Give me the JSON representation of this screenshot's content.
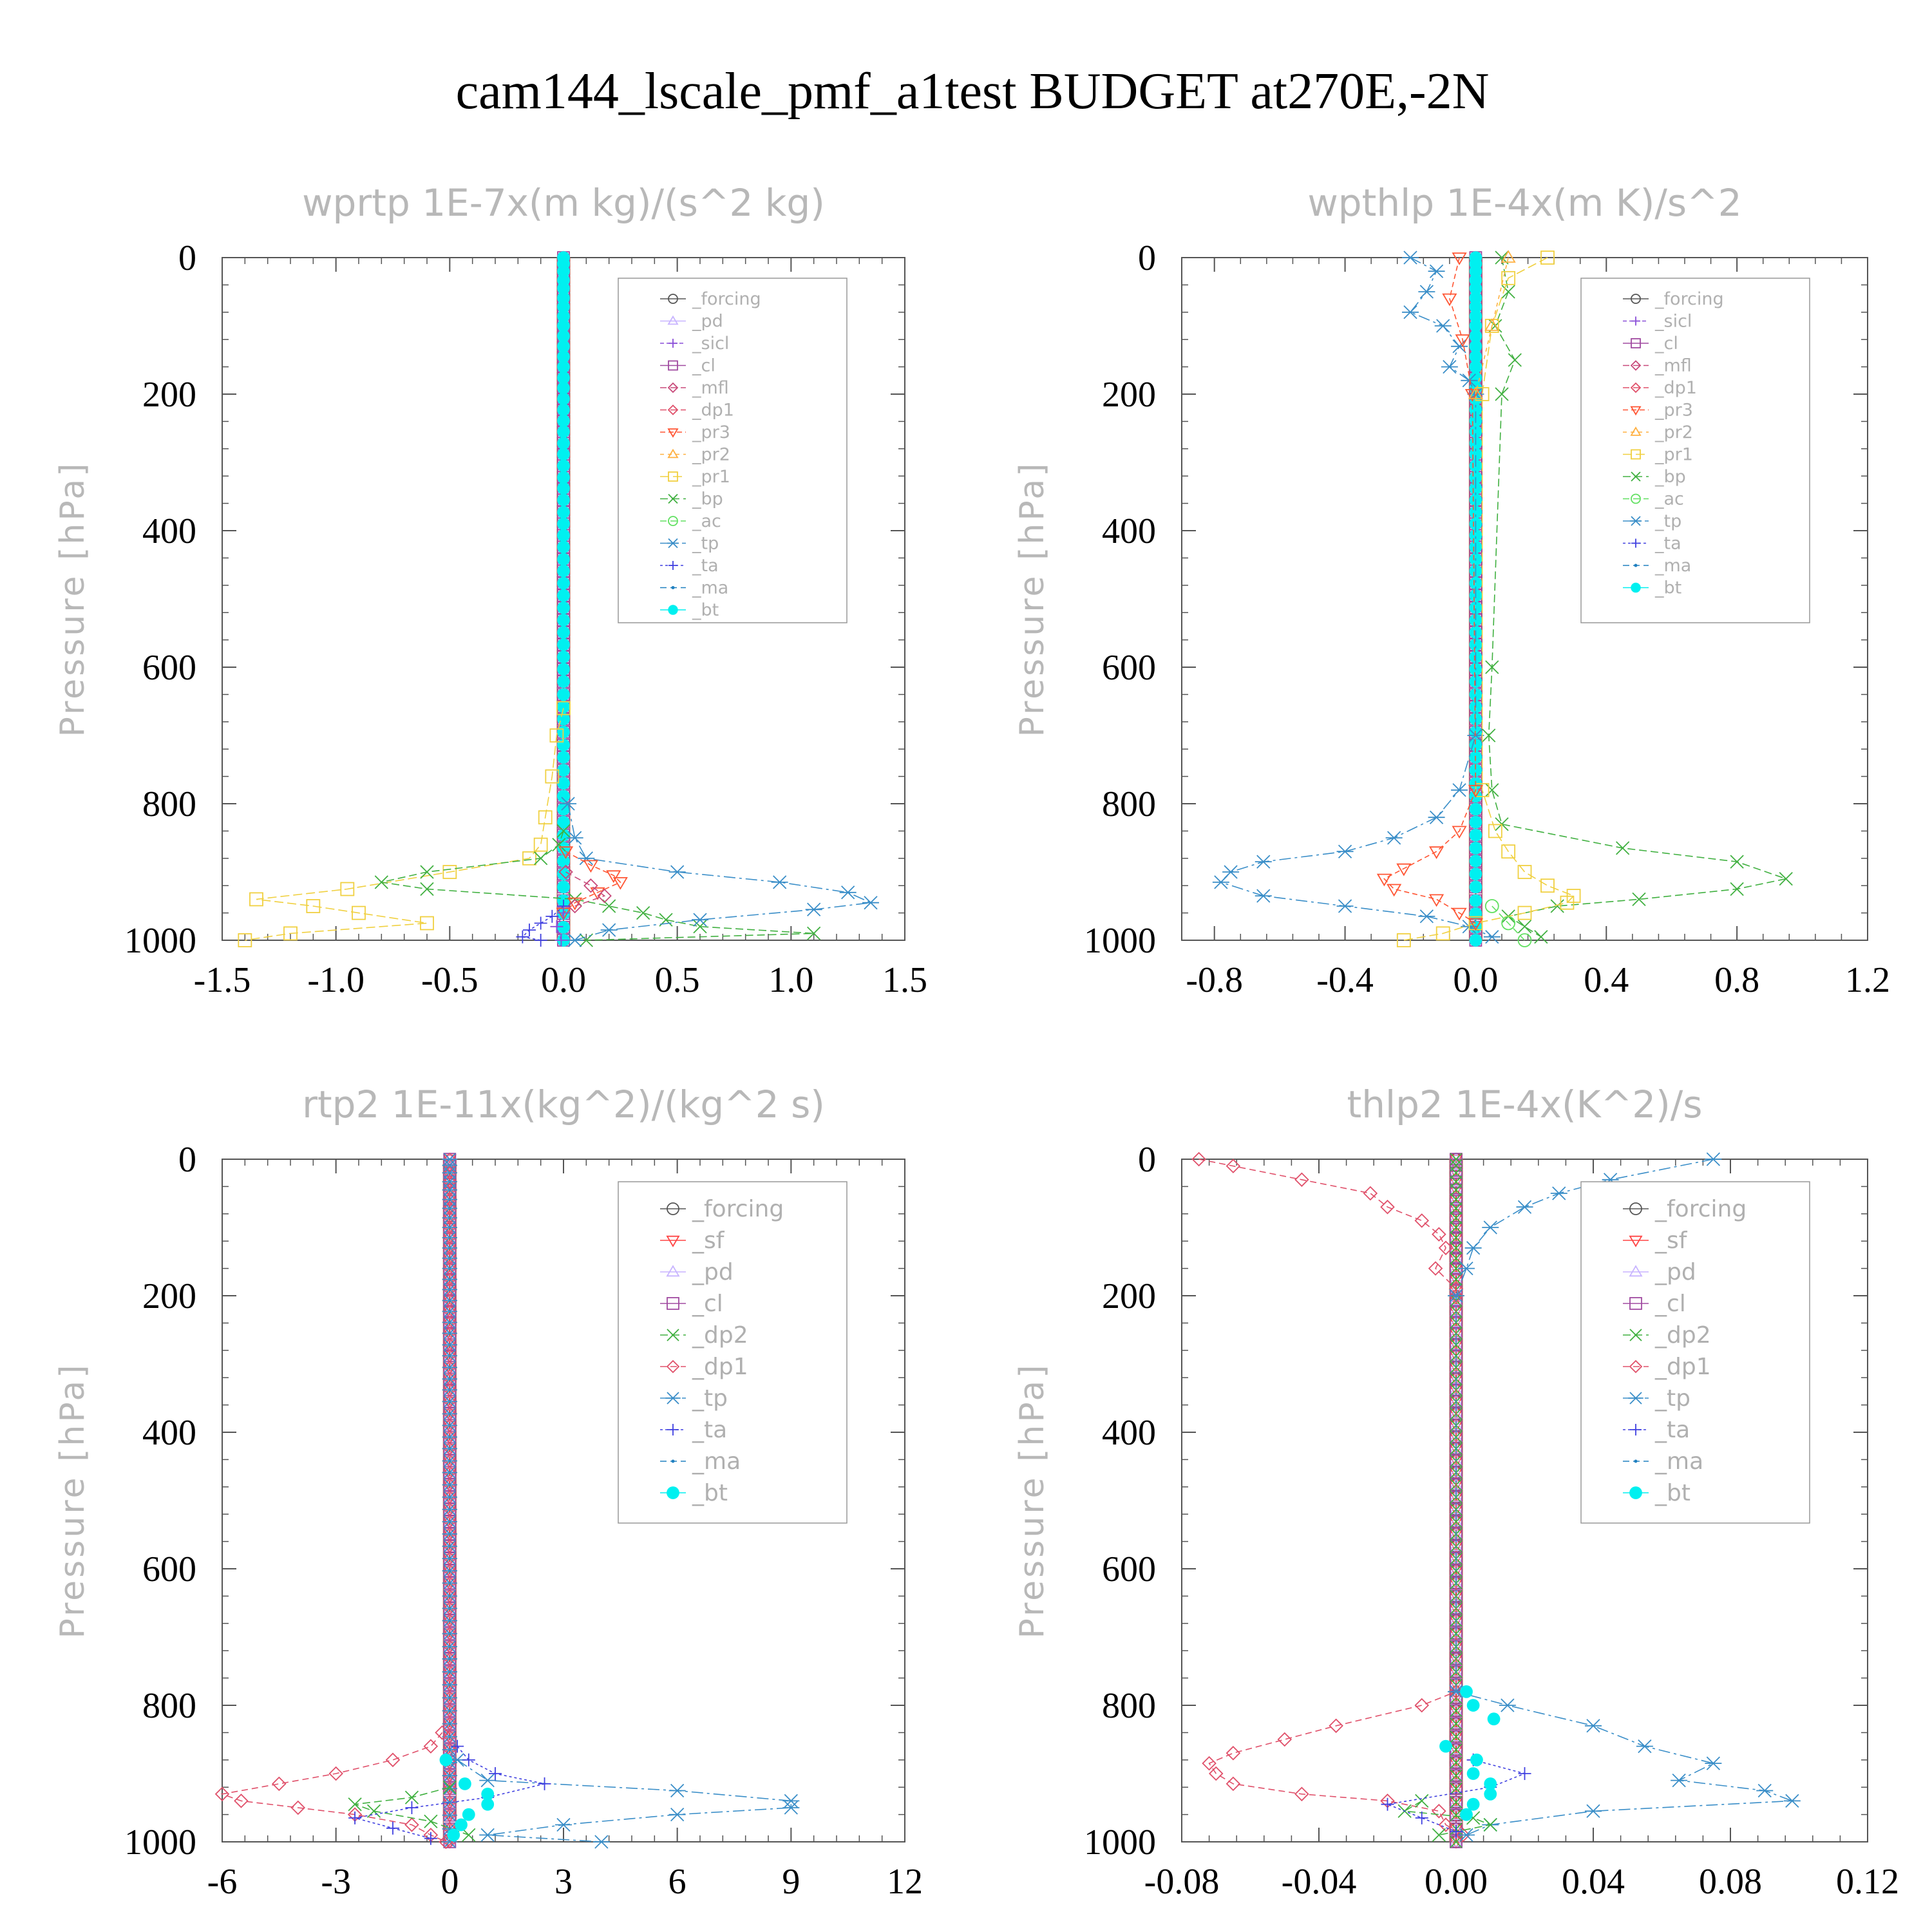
{
  "figure": {
    "title": "cam144_lscale_pmf_a1test  BUDGET at270E,-2N",
    "ylabel": "Pressure [hPa]"
  },
  "colors": {
    "_forcing": "#555555",
    "_pd": "#c8b4ff",
    "_sicl": "#8a4fd8",
    "_cl": "#a04aa0",
    "_mfl": "#c84a7a",
    "_dp1": "#e0506a",
    "_pr3": "#ff5533",
    "_pr2": "#ffb040",
    "_pr1": "#f0d040",
    "_bp": "#40b040",
    "_ac": "#60e060",
    "_tp": "#3a8ec8",
    "_ta": "#4040e0",
    "_ma": "#2080c0",
    "_bt": "#00f0f0",
    "_sf": "#ff4444",
    "_dp2": "#40b040"
  },
  "chart_data": [
    {
      "type": "line",
      "title": "wprtp  1E-7x(m kg)/(s^2 kg)",
      "ylabel": "Pressure [hPa]",
      "xlim": [
        -1.5,
        1.5
      ],
      "ylim": [
        1000,
        0
      ],
      "xticks": [
        "-1.5",
        "-1.0",
        "-0.5",
        "0.0",
        "0.5",
        "1.0",
        "1.5"
      ],
      "xtick_values": [
        -1.5,
        -1.0,
        -0.5,
        0.0,
        0.5,
        1.0,
        1.5
      ],
      "yticks": [
        "0",
        "200",
        "400",
        "600",
        "800",
        "1000"
      ],
      "ytick_values": [
        0,
        200,
        400,
        600,
        800,
        1000
      ],
      "legend": [
        "_forcing",
        "_pd",
        "_sicl",
        "_cl",
        "_mfl",
        "_dp1",
        "_pr3",
        "_pr2",
        "_pr1",
        "_bp",
        "_ac",
        "_tp",
        "_ta",
        "_ma",
        "_bt"
      ],
      "series": [
        {
          "name": "_pr1",
          "p": [
            660,
            700,
            760,
            820,
            860,
            880,
            900,
            925,
            940,
            950,
            960,
            975,
            990,
            1000
          ],
          "x": [
            0,
            -0.03,
            -0.05,
            -0.08,
            -0.1,
            -0.15,
            -0.5,
            -0.95,
            -1.35,
            -1.1,
            -0.9,
            -0.6,
            -1.2,
            -1.4
          ]
        },
        {
          "name": "_bp",
          "p": [
            840,
            860,
            880,
            900,
            915,
            925,
            940,
            950,
            960,
            970,
            980,
            990,
            1000
          ],
          "x": [
            0,
            -0.02,
            -0.1,
            -0.6,
            -0.8,
            -0.6,
            0.05,
            0.2,
            0.35,
            0.45,
            0.6,
            1.1,
            0.1
          ]
        },
        {
          "name": "_tp",
          "p": [
            800,
            850,
            880,
            900,
            915,
            930,
            945,
            955,
            970,
            985,
            1000
          ],
          "x": [
            0.02,
            0.05,
            0.1,
            0.5,
            0.95,
            1.25,
            1.35,
            1.1,
            0.6,
            0.2,
            0.05
          ]
        },
        {
          "name": "_pr3",
          "p": [
            870,
            890,
            905,
            915,
            930,
            945,
            960
          ],
          "x": [
            0.01,
            0.12,
            0.22,
            0.25,
            0.15,
            0.05,
            0
          ]
        },
        {
          "name": "_mfl",
          "p": [
            900,
            920,
            935,
            950
          ],
          "x": [
            0.01,
            0.12,
            0.18,
            0.05
          ]
        },
        {
          "name": "_ta",
          "p": [
            950,
            965,
            975,
            985,
            995,
            1000
          ],
          "x": [
            0,
            -0.05,
            -0.1,
            -0.15,
            -0.18,
            -0.1
          ]
        },
        {
          "name": "_sicl",
          "p": [
            960,
            980,
            1000
          ],
          "x": [
            0,
            -0.03,
            -0.01
          ]
        },
        {
          "name": "_forcing",
          "p": [
            0,
            1000
          ],
          "x": [
            0,
            0
          ]
        }
      ],
      "stack_series": [
        "_forcing",
        "_pd",
        "_cl",
        "_mfl",
        "_dp1",
        "_bt"
      ]
    },
    {
      "type": "line",
      "title": "wpthlp  1E-4x(m K)/s^2",
      "ylabel": "Pressure [hPa]",
      "xlim": [
        -0.9,
        1.2
      ],
      "ylim": [
        1000,
        0
      ],
      "xticks": [
        "-0.8",
        "-0.4",
        "0.0",
        "0.4",
        "0.8",
        "1.2"
      ],
      "xtick_values": [
        -0.8,
        -0.4,
        0.0,
        0.4,
        0.8,
        1.2
      ],
      "yticks": [
        "0",
        "200",
        "400",
        "600",
        "800",
        "1000"
      ],
      "ytick_values": [
        0,
        200,
        400,
        600,
        800,
        1000
      ],
      "legend": [
        "_forcing",
        "_sicl",
        "_cl",
        "_mfl",
        "_dp1",
        "_pr3",
        "_pr2",
        "_pr1",
        "_bp",
        "_ac",
        "_tp",
        "_ta",
        "_ma",
        "_bt"
      ],
      "series": [
        {
          "name": "_tp",
          "p": [
            0,
            20,
            50,
            80,
            100,
            130,
            160,
            180,
            200,
            700,
            780,
            820,
            850,
            870,
            885,
            900,
            915,
            935,
            950,
            965,
            980,
            995
          ],
          "x": [
            -0.2,
            -0.12,
            -0.15,
            -0.2,
            -0.1,
            -0.05,
            -0.08,
            -0.02,
            0,
            0.0,
            -0.05,
            -0.12,
            -0.25,
            -0.4,
            -0.65,
            -0.75,
            -0.78,
            -0.65,
            -0.4,
            -0.15,
            -0.02,
            0.05
          ]
        },
        {
          "name": "_bp",
          "p": [
            0,
            50,
            100,
            150,
            200,
            600,
            700,
            780,
            830,
            865,
            885,
            910,
            925,
            940,
            950,
            965,
            980,
            995
          ],
          "x": [
            0.08,
            0.1,
            0.06,
            0.12,
            0.08,
            0.05,
            0.04,
            0.05,
            0.08,
            0.45,
            0.8,
            0.95,
            0.8,
            0.5,
            0.25,
            0.1,
            0.15,
            0.2
          ]
        },
        {
          "name": "_pr1",
          "p": [
            0,
            30,
            100,
            200,
            780,
            840,
            870,
            900,
            920,
            935,
            945,
            960,
            975,
            990,
            1000
          ],
          "x": [
            0.22,
            0.1,
            0.05,
            0.02,
            0.02,
            0.06,
            0.1,
            0.15,
            0.22,
            0.3,
            0.28,
            0.15,
            0.0,
            -0.1,
            -0.22
          ]
        },
        {
          "name": "_pr3",
          "p": [
            0,
            60,
            120,
            200,
            780,
            840,
            870,
            895,
            910,
            925,
            940,
            960,
            975
          ],
          "x": [
            -0.05,
            -0.08,
            -0.04,
            -0.01,
            0.0,
            -0.05,
            -0.12,
            -0.22,
            -0.28,
            -0.25,
            -0.12,
            -0.05,
            0
          ]
        },
        {
          "name": "_pr2",
          "p": [
            0,
            100,
            200
          ],
          "x": [
            0.1,
            0.05,
            0.0
          ]
        },
        {
          "name": "_ac",
          "p": [
            950,
            975,
            1000
          ],
          "x": [
            0.05,
            0.1,
            0.15
          ]
        },
        {
          "name": "_forcing",
          "p": [
            0,
            1000
          ],
          "x": [
            0,
            0
          ]
        }
      ],
      "stack_series": [
        "_forcing",
        "_cl",
        "_mfl",
        "_dp1",
        "_bt"
      ]
    },
    {
      "type": "line",
      "title": "rtp2  1E-11x(kg^2)/(kg^2 s)",
      "ylabel": "Pressure [hPa]",
      "xlim": [
        -6,
        12
      ],
      "ylim": [
        1000,
        0
      ],
      "xticks": [
        "-6",
        "-3",
        "0",
        "3",
        "6",
        "9",
        "12"
      ],
      "xtick_values": [
        -6,
        -3,
        0,
        3,
        6,
        9,
        12
      ],
      "yticks": [
        "0",
        "200",
        "400",
        "600",
        "800",
        "1000"
      ],
      "ytick_values": [
        0,
        200,
        400,
        600,
        800,
        1000
      ],
      "legend": [
        "_forcing",
        "_sf",
        "_pd",
        "_cl",
        "_dp2",
        "_dp1",
        "_tp",
        "_ta",
        "_ma",
        "_bt"
      ],
      "series": [
        {
          "name": "_dp1",
          "p": [
            840,
            860,
            880,
            900,
            915,
            930,
            940,
            950,
            960,
            975,
            990,
            1000
          ],
          "x": [
            -0.2,
            -0.5,
            -1.5,
            -3,
            -4.5,
            -6,
            -5.5,
            -4,
            -2.5,
            -1,
            -0.5,
            -0.1
          ]
        },
        {
          "name": "_dp2",
          "p": [
            920,
            935,
            945,
            955,
            970,
            990
          ],
          "x": [
            0,
            -1,
            -2.5,
            -2,
            -0.5,
            0.5
          ]
        },
        {
          "name": "_tp",
          "p": [
            880,
            910,
            925,
            940,
            950,
            960,
            975,
            990,
            1000
          ],
          "x": [
            0.2,
            1,
            6,
            9,
            9,
            6,
            3,
            1,
            4
          ]
        },
        {
          "name": "_ta",
          "p": [
            860,
            880,
            900,
            915,
            935,
            950,
            965,
            980,
            995
          ],
          "x": [
            0.2,
            0.5,
            1.2,
            2.5,
            1,
            -1,
            -2.5,
            -1.5,
            -0.5
          ]
        },
        {
          "name": "_bt",
          "p": [
            880,
            915,
            930,
            945,
            960,
            975,
            990
          ],
          "x": [
            -0.1,
            0.4,
            1.0,
            1.0,
            0.5,
            0.3,
            0.1
          ]
        },
        {
          "name": "_forcing",
          "p": [
            0,
            1000
          ],
          "x": [
            0,
            0
          ]
        }
      ],
      "stack_series": [
        "_sf",
        "_pd",
        "_cl",
        "_dp1",
        "_tp"
      ]
    },
    {
      "type": "line",
      "title": "thlp2  1E-4x(K^2)/s",
      "ylabel": "Pressure [hPa]",
      "xlim": [
        -0.08,
        0.12
      ],
      "ylim": [
        1000,
        0
      ],
      "xticks": [
        "-0.08",
        "-0.04",
        "0.00",
        "0.04",
        "0.08",
        "0.12"
      ],
      "xtick_values": [
        -0.08,
        -0.04,
        0.0,
        0.04,
        0.08,
        0.12
      ],
      "yticks": [
        "0",
        "200",
        "400",
        "600",
        "800",
        "1000"
      ],
      "ytick_values": [
        0,
        200,
        400,
        600,
        800,
        1000
      ],
      "legend": [
        "_forcing",
        "_sf",
        "_pd",
        "_cl",
        "_dp2",
        "_dp1",
        "_tp",
        "_ta",
        "_ma",
        "_bt"
      ],
      "series": [
        {
          "name": "_dp1",
          "p": [
            0,
            10,
            30,
            50,
            70,
            90,
            110,
            130,
            160,
            190,
            200,
            780,
            800,
            830,
            850,
            870,
            885,
            900,
            915,
            930,
            940,
            955,
            975,
            990
          ],
          "x": [
            -0.075,
            -0.065,
            -0.045,
            -0.025,
            -0.02,
            -0.01,
            -0.005,
            -0.003,
            -0.006,
            0,
            0,
            0,
            -0.01,
            -0.035,
            -0.05,
            -0.065,
            -0.072,
            -0.07,
            -0.065,
            -0.045,
            -0.02,
            -0.005,
            -0.003,
            0.002
          ]
        },
        {
          "name": "_tp",
          "p": [
            0,
            30,
            50,
            70,
            100,
            130,
            160,
            200,
            780,
            800,
            830,
            860,
            885,
            910,
            925,
            940,
            955,
            975,
            990
          ],
          "x": [
            0.075,
            0.045,
            0.03,
            0.02,
            0.01,
            0.005,
            0.003,
            0,
            0,
            0.015,
            0.04,
            0.055,
            0.075,
            0.065,
            0.09,
            0.098,
            0.04,
            0.01,
            0.003
          ]
        },
        {
          "name": "_dp2",
          "p": [
            940,
            955,
            965,
            975,
            990
          ],
          "x": [
            -0.01,
            -0.015,
            0.005,
            0.01,
            -0.005
          ]
        },
        {
          "name": "_ta",
          "p": [
            880,
            900,
            920,
            945,
            965,
            985
          ],
          "x": [
            0.005,
            0.02,
            0.01,
            -0.02,
            -0.01,
            0.0
          ]
        },
        {
          "name": "_bt",
          "p": [
            780,
            800,
            820,
            860,
            880,
            900,
            915,
            930,
            945,
            960
          ],
          "x": [
            0.003,
            0.005,
            0.011,
            -0.003,
            0.006,
            0.005,
            0.01,
            0.01,
            0.005,
            0.003
          ]
        },
        {
          "name": "_forcing",
          "p": [
            0,
            1000
          ],
          "x": [
            0,
            0
          ]
        }
      ],
      "stack_series": [
        "_forcing",
        "_sf",
        "_pd",
        "_cl",
        "_dp2"
      ]
    }
  ]
}
